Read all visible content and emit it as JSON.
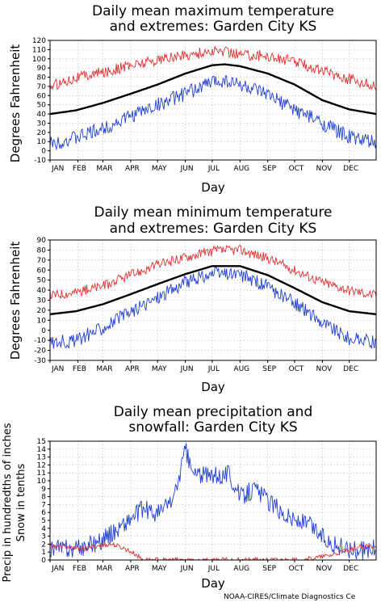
{
  "credit": "NOAA-CIRES/Climate Diagnostics Ce",
  "colors": {
    "mean": "#000000",
    "max_extreme": "#e03030",
    "min_extreme": "#2040d0",
    "precip": "#2040d0",
    "snow": "#e03030",
    "grid": "#999999"
  },
  "chart_data": [
    {
      "type": "line",
      "title_lines": [
        "Daily mean maximum temperature",
        "and extremes: Garden City KS"
      ],
      "xlabel": "Day",
      "ylabel": "Degrees Fahrenheit",
      "months": [
        "JAN",
        "FEB",
        "MAR",
        "APR",
        "MAY",
        "JUN",
        "JUL",
        "AUG",
        "SEP",
        "OCT",
        "NOV",
        "DEC"
      ],
      "ylim": [
        -10,
        120
      ],
      "yticks": [
        -10,
        0,
        10,
        20,
        30,
        40,
        50,
        60,
        70,
        80,
        90,
        100,
        110,
        120
      ],
      "grid": true,
      "series": [
        {
          "key": "extreme_max",
          "color": "#e03030",
          "x": [
            1,
            30,
            60,
            91,
            121,
            152,
            182,
            196,
            213,
            244,
            274,
            305,
            335,
            365
          ],
          "values": [
            70,
            80,
            85,
            93,
            99,
            104,
            108,
            108,
            105,
            103,
            97,
            87,
            78,
            70
          ],
          "noise": 6
        },
        {
          "key": "mean",
          "color": "#000000",
          "x": [
            1,
            30,
            60,
            91,
            121,
            152,
            182,
            196,
            213,
            244,
            274,
            305,
            335,
            365
          ],
          "values": [
            40,
            44,
            52,
            62,
            72,
            84,
            93,
            94,
            92,
            84,
            72,
            55,
            45,
            40
          ],
          "noise": 0
        },
        {
          "key": "extreme_min",
          "color": "#2040d0",
          "x": [
            1,
            30,
            60,
            91,
            121,
            152,
            182,
            196,
            213,
            244,
            274,
            305,
            335,
            365
          ],
          "values": [
            8,
            14,
            24,
            38,
            50,
            62,
            75,
            77,
            72,
            60,
            45,
            30,
            15,
            8
          ],
          "noise": 8
        }
      ]
    },
    {
      "type": "line",
      "title_lines": [
        "Daily mean minimum temperature",
        "and extremes: Garden City KS"
      ],
      "xlabel": "Day",
      "ylabel": "Degrees Fahrenheit",
      "months": [
        "JAN",
        "FEB",
        "MAR",
        "APR",
        "MAY",
        "JUN",
        "JUL",
        "AUG",
        "SEP",
        "OCT",
        "NOV",
        "DEC"
      ],
      "ylim": [
        -30,
        90
      ],
      "yticks": [
        -30,
        -20,
        -10,
        0,
        10,
        20,
        30,
        40,
        50,
        60,
        70,
        80,
        90
      ],
      "grid": true,
      "series": [
        {
          "key": "extreme_max",
          "color": "#e03030",
          "x": [
            1,
            30,
            60,
            91,
            121,
            152,
            182,
            213,
            244,
            274,
            305,
            335,
            365
          ],
          "values": [
            35,
            38,
            44,
            55,
            65,
            73,
            79,
            80,
            72,
            60,
            48,
            40,
            35
          ],
          "noise": 5
        },
        {
          "key": "mean",
          "color": "#000000",
          "x": [
            1,
            30,
            60,
            91,
            121,
            152,
            182,
            213,
            244,
            274,
            305,
            335,
            365
          ],
          "values": [
            16,
            19,
            26,
            36,
            46,
            56,
            64,
            64,
            55,
            42,
            28,
            19,
            16
          ],
          "noise": 0
        },
        {
          "key": "extreme_min",
          "color": "#2040d0",
          "x": [
            1,
            30,
            60,
            91,
            121,
            152,
            182,
            213,
            244,
            274,
            305,
            335,
            365
          ],
          "values": [
            -12,
            -10,
            3,
            18,
            33,
            48,
            56,
            56,
            43,
            27,
            8,
            -8,
            -12
          ],
          "noise": 7
        }
      ]
    },
    {
      "type": "line",
      "title_lines": [
        "Daily mean precipitation and",
        "snowfall: Garden City KS"
      ],
      "xlabel": "Day",
      "ylabel_lines": [
        "Precip in hundredths of inches",
        "Snow in tenths"
      ],
      "months": [
        "JAN",
        "FEB",
        "MAR",
        "APR",
        "MAY",
        "JUN",
        "JUL",
        "AUG",
        "SEP",
        "OCT",
        "NOV",
        "DEC"
      ],
      "ylim": [
        0,
        15
      ],
      "yticks": [
        0,
        1,
        2,
        3,
        4,
        5,
        6,
        7,
        8,
        9,
        10,
        11,
        12,
        13,
        14,
        15
      ],
      "grid": true,
      "series": [
        {
          "key": "precip",
          "color": "#2040d0",
          "x": [
            1,
            30,
            60,
            91,
            105,
            121,
            140,
            152,
            160,
            182,
            200,
            213,
            230,
            244,
            260,
            274,
            290,
            305,
            320,
            335,
            350,
            365
          ],
          "values": [
            1.5,
            1.3,
            2.5,
            5.2,
            6.5,
            5.8,
            8,
            14,
            11,
            10.5,
            11,
            8,
            9,
            7.5,
            6,
            5,
            4.5,
            3,
            1.8,
            1.4,
            1.2,
            1.5
          ],
          "noise": 1.2
        },
        {
          "key": "snow",
          "color": "#e03030",
          "x": [
            1,
            20,
            40,
            55,
            70,
            85,
            95,
            105,
            260,
            280,
            300,
            315,
            330,
            345,
            365
          ],
          "values": [
            1.8,
            1.6,
            1.4,
            1.8,
            2,
            1.4,
            0.8,
            0,
            0,
            0,
            0.3,
            0.6,
            1.2,
            1.6,
            1.8
          ],
          "noise": 0.3
        }
      ]
    }
  ]
}
